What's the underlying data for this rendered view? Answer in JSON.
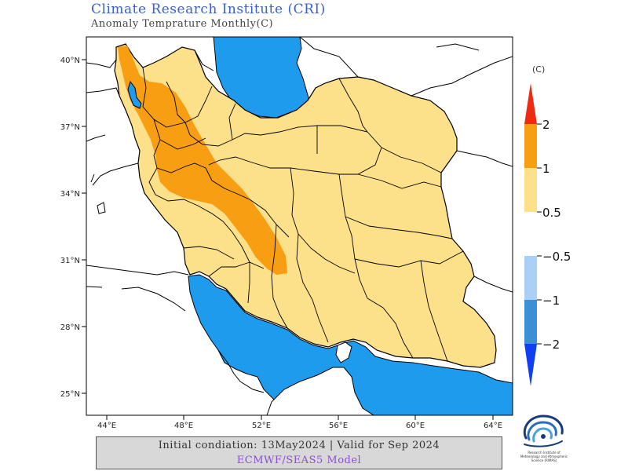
{
  "header": {
    "title": "Climate Research Institute (CRI)",
    "subtitle": "Anomaly Temprature Monthly(C)"
  },
  "map": {
    "lat_labels": [
      "40°N",
      "37°N",
      "34°N",
      "31°N",
      "28°N",
      "25°N"
    ],
    "lon_labels": [
      "44°E",
      "48°E",
      "52°E",
      "56°E",
      "60°E",
      "64°E"
    ],
    "colors": {
      "sea": "#1f9bee",
      "land_outside": "#ffffff",
      "anomaly_0_5_to_1": "#fde08a",
      "anomaly_1_to_2": "#f79e12",
      "border": "#000000"
    }
  },
  "legend": {
    "unit": "(C)",
    "labels": [
      "2",
      "1",
      "0.5",
      "−0.5",
      "−1",
      "−2"
    ],
    "colors": {
      "above_2": "#ef2a12",
      "c1_2": "#f79e12",
      "c05_1": "#fde08a",
      "cm05_m1": "#abd0f7",
      "cm1_m2": "#3a8fd6",
      "below_m2": "#0f3ff0"
    }
  },
  "footer": {
    "line1": "Initial condiation: 13May2024 | Valid for Sep 2024",
    "line2": "ECMWF/SEAS5 Model"
  },
  "logo": {
    "caption": "Research Institute of Meteorology and Atmospheric Science (RIMAS)"
  }
}
